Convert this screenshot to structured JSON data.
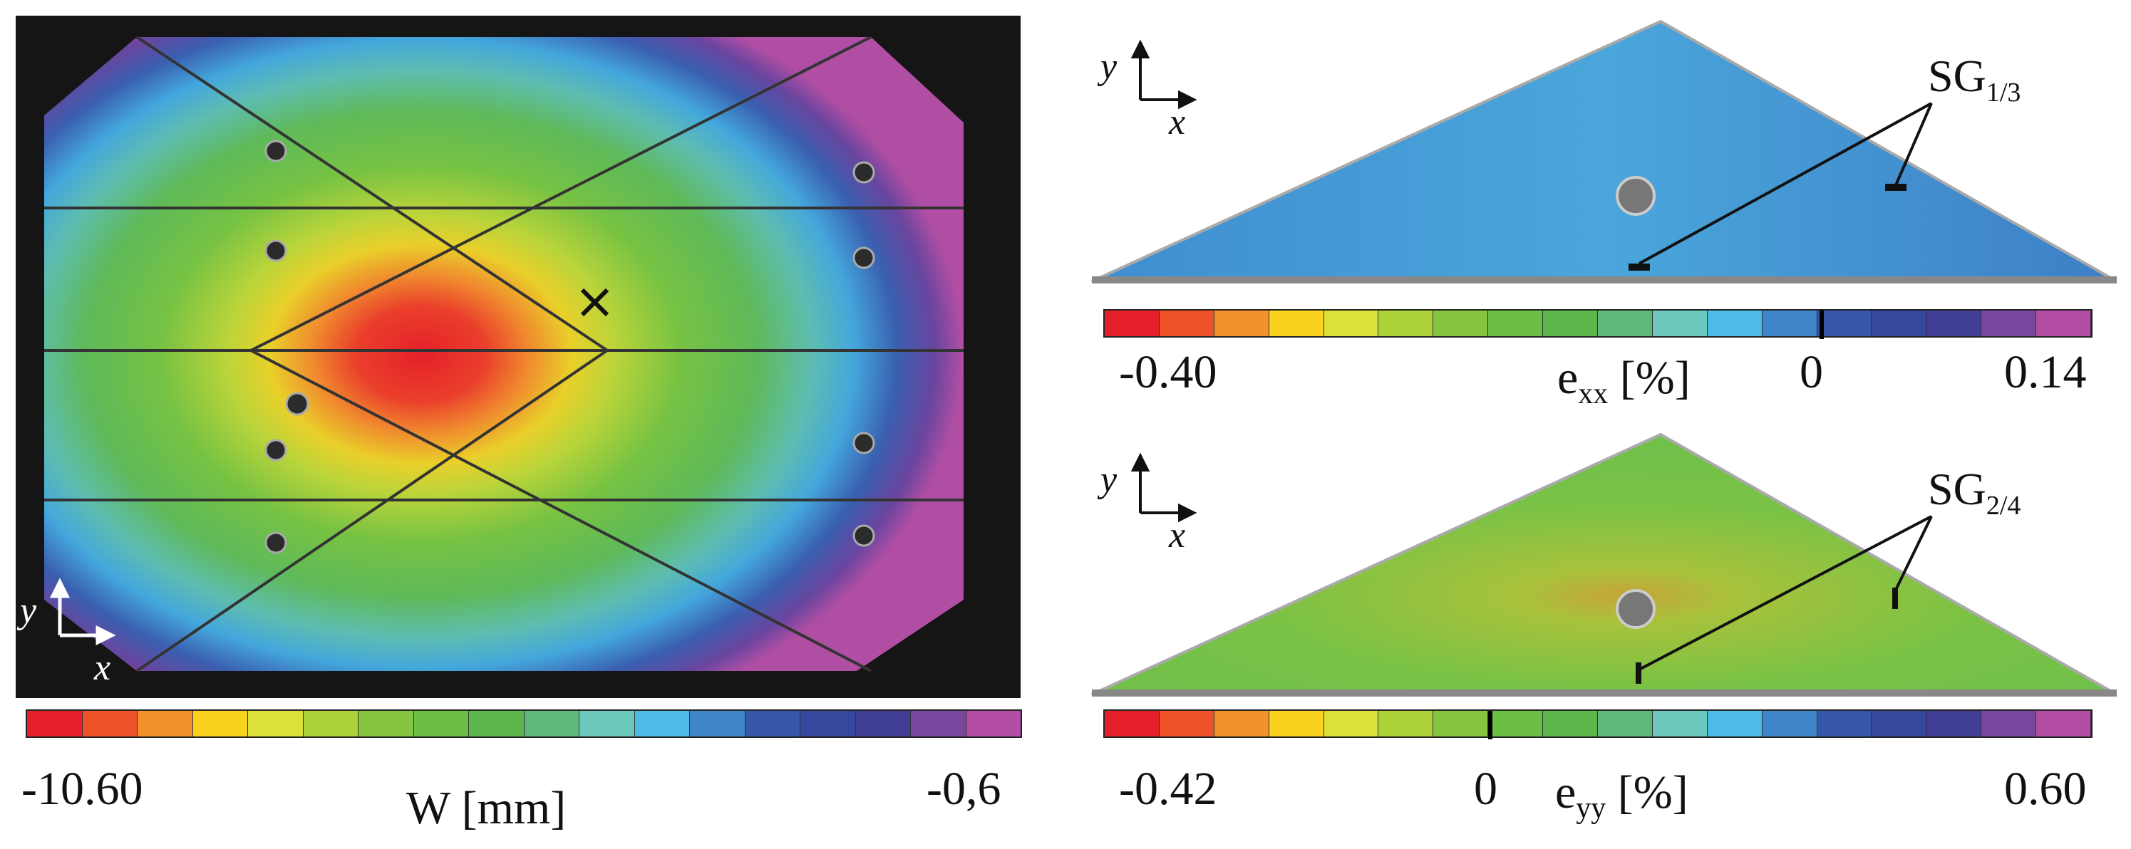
{
  "left_panel": {
    "colorbar_min": "-10.60",
    "colorbar_max": "-0,6",
    "quantity": "W [mm]",
    "axis_x": "x",
    "axis_y": "y",
    "marker": "×"
  },
  "top_right_panel": {
    "colorbar_min": "-0.40",
    "colorbar_mid": "0",
    "colorbar_max": "0.14",
    "quantity_main": "e",
    "quantity_sub": "xx",
    "quantity_unit": "[%]",
    "sg_main": "SG",
    "sg_sub": "1/3",
    "axis_x": "x",
    "axis_y": "y"
  },
  "bottom_right_panel": {
    "colorbar_min": "-0.42",
    "colorbar_mid": "0",
    "colorbar_max": "0.60",
    "quantity_main": "e",
    "quantity_sub": "yy",
    "quantity_unit": "[%]",
    "sg_main": "SG",
    "sg_sub": "2/4",
    "axis_x": "x",
    "axis_y": "y"
  },
  "colormap": [
    "#e5202a",
    "#ee5228",
    "#f3922c",
    "#f8d21e",
    "#dde03a",
    "#aed23a",
    "#86c53f",
    "#6bbf45",
    "#5cb64c",
    "#5fb97a",
    "#6cc7bd",
    "#4cbbe6",
    "#3e86c9",
    "#3656a9",
    "#36479e",
    "#413e96",
    "#7a479e",
    "#b44ea4"
  ]
}
